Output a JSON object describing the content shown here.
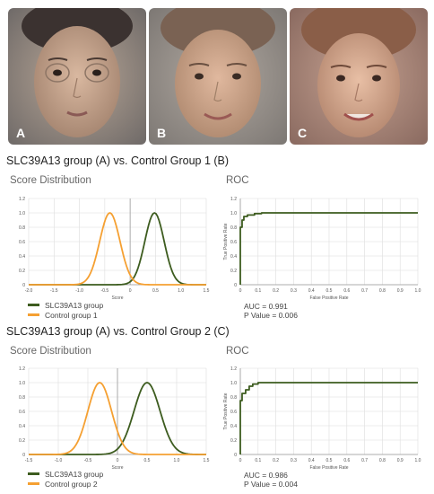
{
  "faces": [
    {
      "label": "A",
      "icon": "face-photo-icon"
    },
    {
      "label": "B",
      "icon": "face-photo-icon"
    },
    {
      "label": "C",
      "icon": "face-photo-icon"
    }
  ],
  "colors": {
    "green": "#3d5c1f",
    "orange": "#f5a032",
    "grid": "#dddddd",
    "axis": "#999999"
  },
  "sections": [
    {
      "title": "SLC39A13 group (A)  vs. Control Group 1 (B)",
      "score_title": "Score Distribution",
      "roc_title": "ROC",
      "legend": [
        "SLC39A13 group",
        "Control group 1"
      ],
      "auc": "AUC = 0.991",
      "pvalue": "P Value = 0.006"
    },
    {
      "title": "SLC39A13 group (A) vs. Control Group 2 (C)",
      "score_title": "Score Distribution",
      "roc_title": "ROC",
      "legend": [
        "SLC39A13 group",
        "Control group 2"
      ],
      "auc": "AUC = 0.986",
      "pvalue": "P Value = 0.004"
    }
  ],
  "chart_data": [
    {
      "type": "line",
      "title": "Score Distribution",
      "xlabel": "Score",
      "ylabel": "",
      "xlim": [
        -2.0,
        1.5
      ],
      "ylim": [
        0,
        1.2
      ],
      "xticks": [
        "-2.0",
        "-1.5",
        "-1.0",
        "-0.5",
        "0",
        "0.5",
        "1.0",
        "1.5"
      ],
      "yticks": [
        "0",
        "0.2",
        "0.4",
        "0.6",
        "0.8",
        "1.0",
        "1.2"
      ],
      "grid": true,
      "legend_position": "bottom-left",
      "series": [
        {
          "name": "SLC39A13 group",
          "color": "#3d5c1f",
          "peak_x": 0.48,
          "sd": 0.19
        },
        {
          "name": "Control group 1",
          "color": "#f5a032",
          "peak_x": -0.4,
          "sd": 0.2
        }
      ]
    },
    {
      "type": "line",
      "title": "ROC",
      "xlabel": "False Positive Rate",
      "ylabel": "True Positive Rate",
      "xlim": [
        0,
        1.0
      ],
      "ylim": [
        0,
        1.2
      ],
      "xticks": [
        "0",
        "0.1",
        "0.2",
        "0.3",
        "0.4",
        "0.5",
        "0.6",
        "0.7",
        "0.8",
        "0.9",
        "1.0"
      ],
      "yticks": [
        "0",
        "0.2",
        "0.4",
        "0.6",
        "0.8",
        "1.0",
        "1.2"
      ],
      "grid": true,
      "series": [
        {
          "color": "#3d5c1f",
          "x": [
            0,
            0,
            0.01,
            0.01,
            0.02,
            0.02,
            0.04,
            0.04,
            0.08,
            0.08,
            0.12,
            0.12,
            1.0
          ],
          "y": [
            0,
            0.8,
            0.8,
            0.9,
            0.9,
            0.95,
            0.95,
            0.97,
            0.97,
            0.99,
            0.99,
            1.0,
            1.0
          ]
        }
      ],
      "annotations": [
        "AUC = 0.991",
        "P Value = 0.006"
      ]
    },
    {
      "type": "line",
      "title": "Score Distribution",
      "xlabel": "Score",
      "ylabel": "",
      "xlim": [
        -1.5,
        1.5
      ],
      "ylim": [
        0,
        1.2
      ],
      "xticks": [
        "-1.5",
        "-1.0",
        "-0.5",
        "0",
        "0.5",
        "1.0",
        "1.5"
      ],
      "yticks": [
        "0",
        "0.2",
        "0.4",
        "0.6",
        "0.8",
        "1.0",
        "1.2"
      ],
      "grid": true,
      "legend_position": "bottom-left",
      "series": [
        {
          "name": "SLC39A13 group",
          "color": "#3d5c1f",
          "peak_x": 0.5,
          "sd": 0.22
        },
        {
          "name": "Control group 2",
          "color": "#f5a032",
          "peak_x": -0.3,
          "sd": 0.2
        }
      ]
    },
    {
      "type": "line",
      "title": "ROC",
      "xlabel": "False Positive Rate",
      "ylabel": "True Positive Rate",
      "xlim": [
        0,
        1.0
      ],
      "ylim": [
        0,
        1.2
      ],
      "xticks": [
        "0",
        "0.1",
        "0.2",
        "0.3",
        "0.4",
        "0.5",
        "0.6",
        "0.7",
        "0.8",
        "0.9",
        "1.0"
      ],
      "yticks": [
        "0",
        "0.2",
        "0.4",
        "0.6",
        "0.8",
        "1.0",
        "1.2"
      ],
      "grid": true,
      "series": [
        {
          "color": "#3d5c1f",
          "x": [
            0,
            0,
            0.01,
            0.01,
            0.03,
            0.03,
            0.05,
            0.05,
            0.07,
            0.07,
            0.1,
            0.1,
            1.0
          ],
          "y": [
            0,
            0.75,
            0.75,
            0.85,
            0.85,
            0.9,
            0.9,
            0.95,
            0.95,
            0.98,
            0.98,
            1.0,
            1.0
          ]
        }
      ],
      "annotations": [
        "AUC = 0.986",
        "P Value = 0.004"
      ]
    }
  ]
}
